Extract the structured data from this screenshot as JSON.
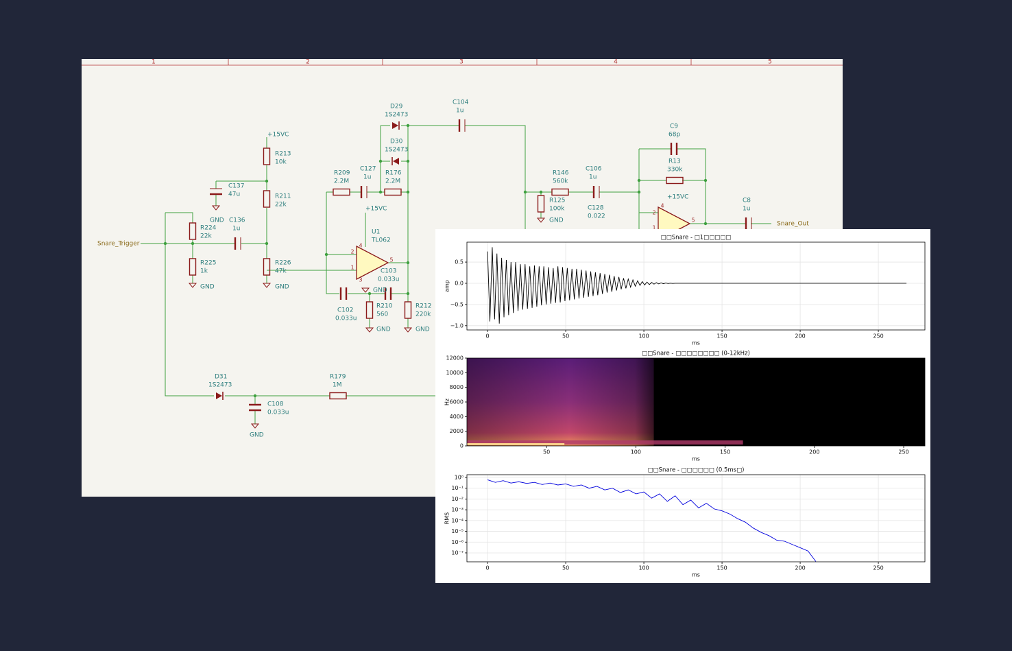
{
  "schematic": {
    "border_columns": [
      "1",
      "2",
      "3",
      "4",
      "5"
    ],
    "components": [
      {
        "ref": "R213",
        "value": "10k"
      },
      {
        "ref": "C137",
        "value": "47u"
      },
      {
        "ref": "R211",
        "value": "22k"
      },
      {
        "ref": "R224",
        "value": "22k"
      },
      {
        "ref": "C136",
        "value": "1u"
      },
      {
        "ref": "R225",
        "value": "1k"
      },
      {
        "ref": "R226",
        "value": "47k"
      },
      {
        "ref": "R209",
        "value": "2.2M"
      },
      {
        "ref": "C127",
        "value": "1u"
      },
      {
        "ref": "R176",
        "value": "2.2M"
      },
      {
        "ref": "D29",
        "value": "1S2473"
      },
      {
        "ref": "D30",
        "value": "1S2473"
      },
      {
        "ref": "C104",
        "value": "1u"
      },
      {
        "ref": "U1",
        "value": "TL062"
      },
      {
        "ref": "C103",
        "value": "0.033u"
      },
      {
        "ref": "C102",
        "value": "0.033u"
      },
      {
        "ref": "R210",
        "value": "560"
      },
      {
        "ref": "R212",
        "value": "220k"
      },
      {
        "ref": "D31",
        "value": "1S2473"
      },
      {
        "ref": "C108",
        "value": "0.033u"
      },
      {
        "ref": "R179",
        "value": "1M"
      },
      {
        "ref": "R146",
        "value": "560k"
      },
      {
        "ref": "C106",
        "value": "1u"
      },
      {
        "ref": "R125",
        "value": "100k"
      },
      {
        "ref": "C128",
        "value": "0.022"
      },
      {
        "ref": "C9",
        "value": "68p"
      },
      {
        "ref": "R13",
        "value": "330k"
      },
      {
        "ref": "C8",
        "value": "1u"
      }
    ],
    "power_labels": [
      "+15VC",
      "+15VC",
      "+15VC",
      "GND",
      "GND",
      "GND",
      "GND",
      "GND",
      "GND",
      "GND",
      "GND"
    ],
    "ports": [
      "Snare_Trigger",
      "Snare_Out"
    ],
    "pins": [
      "2",
      "1",
      "5",
      "4",
      "3",
      "2",
      "1",
      "5",
      "4"
    ]
  },
  "chart_data": [
    {
      "type": "line",
      "title": "□□Snare - □1□□□□□",
      "xlabel": "ms",
      "ylabel": "amp",
      "color": "#000000",
      "grid": true,
      "xlim": [
        -13.2,
        279.8
      ],
      "ylim": [
        -1.1,
        0.97
      ],
      "xticks": [
        0,
        50,
        100,
        150,
        200,
        250
      ],
      "yticks": [
        {
          "value": -1.0,
          "label": "−1.0"
        },
        {
          "value": -0.5,
          "label": "−0.5"
        },
        {
          "value": 0.0,
          "label": "0.0"
        },
        0.5
      ],
      "x": [
        0,
        1.5,
        3,
        4.5,
        6,
        7.5,
        9,
        10.5,
        12,
        13.5,
        15,
        16.5,
        18,
        19.5,
        21,
        22.5,
        24,
        25.5,
        27,
        28.5,
        30,
        31.5,
        33,
        34.5,
        36,
        37.5,
        39,
        40.5,
        42,
        43.5,
        45,
        46.5,
        48,
        49.5,
        51,
        52.5,
        54,
        55.5,
        57,
        58.5,
        60,
        61.5,
        63,
        64.5,
        66,
        67.5,
        69,
        70.5,
        72,
        73.5,
        75,
        76.5,
        78,
        79.5,
        81,
        82.5,
        84,
        85.5,
        87,
        88.5,
        90,
        91.5,
        93,
        94.5,
        96,
        97.5,
        99,
        100.5,
        102,
        103.5,
        105,
        106.5,
        108,
        109.5,
        111,
        112.5,
        114,
        115.5,
        117,
        118.5,
        120,
        150,
        268
      ],
      "values": [
        0.75,
        -0.9,
        0.85,
        -0.85,
        0.7,
        -0.95,
        0.6,
        -0.8,
        0.55,
        -0.75,
        0.5,
        -0.7,
        0.5,
        -0.65,
        0.45,
        -0.62,
        0.45,
        -0.6,
        0.4,
        -0.58,
        0.42,
        -0.55,
        0.4,
        -0.52,
        0.4,
        -0.5,
        0.38,
        -0.48,
        0.36,
        -0.46,
        0.4,
        -0.45,
        0.38,
        -0.42,
        0.36,
        -0.4,
        0.34,
        -0.38,
        0.34,
        -0.36,
        0.32,
        -0.34,
        0.3,
        -0.32,
        0.28,
        -0.3,
        0.26,
        -0.28,
        0.24,
        -0.25,
        0.22,
        -0.22,
        0.2,
        -0.2,
        0.17,
        -0.17,
        0.15,
        -0.14,
        0.12,
        -0.12,
        0.1,
        -0.09,
        0.08,
        -0.07,
        0.06,
        -0.05,
        0.04,
        -0.04,
        0.03,
        -0.03,
        0.02,
        -0.02,
        0.015,
        -0.015,
        0.01,
        -0.01,
        0.006,
        -0.006,
        0.003,
        -0.003,
        0,
        0,
        0
      ]
    },
    {
      "type": "spectrogram",
      "title": "□□Snare - □□□□□□□□ (0-12kHz)",
      "xlabel": "ms",
      "ylabel": "Hz",
      "xlim": [
        5.4,
        261.9
      ],
      "ylim": [
        0,
        12000
      ],
      "xticks": [
        50,
        100,
        150,
        200,
        250
      ],
      "yticks": [
        0,
        2000,
        4000,
        6000,
        8000,
        10000,
        12000
      ]
    },
    {
      "type": "line",
      "title": "□□Snare - □□□□□□ (0.5ms□)",
      "xlabel": "ms",
      "ylabel": "RMS",
      "color": "#0000dd",
      "grid": true,
      "log_y": true,
      "xlim": [
        -13.2,
        279.8
      ],
      "ylim": [
        1.48e-08,
        1.8
      ],
      "xticks": [
        0,
        50,
        100,
        150,
        200,
        250
      ],
      "yticks": [
        {
          "value": 1,
          "label": "10⁰"
        },
        {
          "value": 0.1,
          "label": "10⁻¹"
        },
        {
          "value": 0.01,
          "label": "10⁻²"
        },
        {
          "value": 0.001,
          "label": "10⁻³"
        },
        {
          "value": 0.0001,
          "label": "10⁻⁴"
        },
        {
          "value": 1e-05,
          "label": "10⁻⁵"
        },
        {
          "value": 1e-06,
          "label": "10⁻⁶"
        },
        {
          "value": 1e-07,
          "label": "10⁻⁷"
        }
      ],
      "x": [
        0,
        5,
        10,
        15,
        20,
        25,
        30,
        35,
        40,
        45,
        50,
        55,
        60,
        65,
        70,
        75,
        80,
        85,
        90,
        95,
        100,
        105,
        110,
        115,
        120,
        125,
        130,
        135,
        140,
        145,
        150,
        155,
        160,
        165,
        170,
        175,
        180,
        185,
        190,
        195,
        200,
        205,
        210
      ],
      "values": [
        0.6,
        0.35,
        0.5,
        0.3,
        0.4,
        0.28,
        0.35,
        0.22,
        0.3,
        0.2,
        0.25,
        0.15,
        0.2,
        0.1,
        0.15,
        0.07,
        0.1,
        0.04,
        0.07,
        0.03,
        0.045,
        0.012,
        0.03,
        0.006,
        0.02,
        0.003,
        0.008,
        0.0015,
        0.004,
        0.0012,
        0.0008,
        0.0004,
        0.00015,
        7e-05,
        2e-05,
        8e-06,
        4e-06,
        1.5e-06,
        1.2e-06,
        6e-07,
        3e-07,
        1.5e-07,
        1.6e-08
      ]
    }
  ]
}
